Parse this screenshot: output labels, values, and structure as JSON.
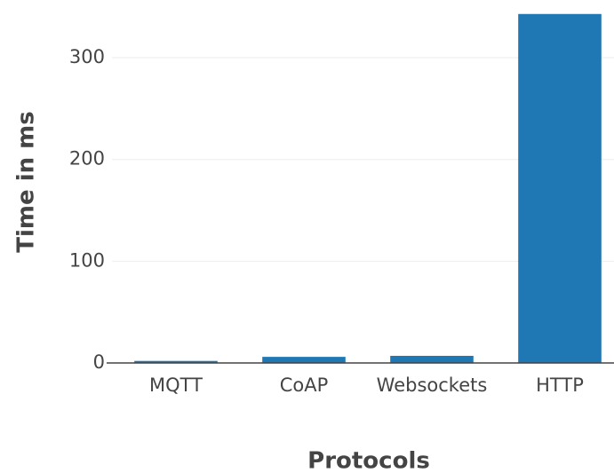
{
  "chart_data": {
    "type": "bar",
    "categories": [
      "MQTT",
      "CoAP",
      "Websockets",
      "HTTP"
    ],
    "values": [
      2,
      6,
      7,
      343
    ],
    "color": "#1f77b4",
    "xlabel": "Protocols",
    "ylabel": "Time in ms",
    "ylim": [
      0,
      355
    ],
    "yticks": [
      0,
      100,
      200,
      300
    ],
    "grid": true
  }
}
